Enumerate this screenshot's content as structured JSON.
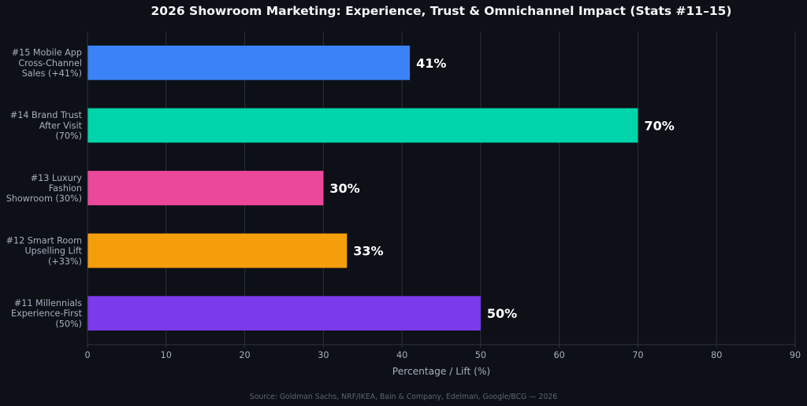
{
  "chart_data": {
    "type": "bar",
    "orientation": "horizontal",
    "title": "2026 Showroom Marketing: Experience, Trust & Omnichannel Impact (Stats #11–15)",
    "xlabel": "Percentage / Lift (%)",
    "ylabel": "",
    "xlim": [
      0,
      90
    ],
    "xticks": [
      0,
      10,
      20,
      30,
      40,
      50,
      60,
      70,
      80,
      90
    ],
    "grid": "vertical",
    "categories": [
      {
        "lines": [
          "#15 Mobile App",
          "Cross-Channel",
          "Sales (+41%)"
        ]
      },
      {
        "lines": [
          "#14 Brand Trust",
          "After Visit",
          "(70%)"
        ]
      },
      {
        "lines": [
          "#13 Luxury",
          "Fashion",
          "Showroom (30%)"
        ]
      },
      {
        "lines": [
          "#12 Smart Room",
          "Upselling Lift",
          "(+33%)"
        ]
      },
      {
        "lines": [
          "#11 Millennials",
          "Experience-First",
          "(50%)"
        ]
      }
    ],
    "values": [
      41,
      70,
      30,
      33,
      50
    ],
    "value_labels": [
      "41%",
      "70%",
      "30%",
      "33%",
      "50%"
    ],
    "colors": [
      "#3b82f6",
      "#00d4aa",
      "#ec4899",
      "#f59e0b",
      "#7c3aed"
    ],
    "source": "Source: Goldman Sachs, NRF/IKEA, Bain & Company, Edelman, Google/BCG — 2026"
  }
}
